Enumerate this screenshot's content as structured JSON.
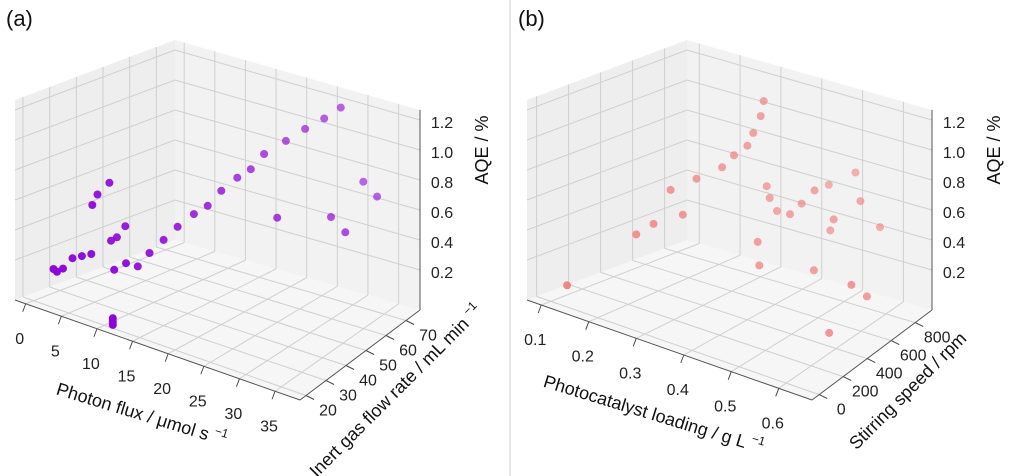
{
  "chart_data": [
    {
      "panel": "(a)",
      "type": "scatter3d",
      "marker_color": "#8B00D8",
      "xlabel": "Photon flux / μmol s",
      "xlabel_sup": "−1",
      "ylabel": "Inert gas flow rate / mL min",
      "ylabel_sup": "−1",
      "zlabel": "AQE / %",
      "xticks": [
        "0",
        "5",
        "10",
        "15",
        "20",
        "25",
        "30",
        "35"
      ],
      "yticks": [
        "20",
        "30",
        "40",
        "50",
        "60",
        "70"
      ],
      "zticks": [
        "0.2",
        "0.4",
        "0.6",
        "0.8",
        "1.0",
        "1.2"
      ],
      "points": [
        {
          "x": 2,
          "y": 21,
          "z": 0.22
        },
        {
          "x": 2.5,
          "y": 21,
          "z": 0.21
        },
        {
          "x": 3,
          "y": 22,
          "z": 0.23
        },
        {
          "x": 4,
          "y": 23,
          "z": 0.3
        },
        {
          "x": 5,
          "y": 24,
          "z": 0.32
        },
        {
          "x": 6,
          "y": 25,
          "z": 0.34
        },
        {
          "x": 5,
          "y": 28,
          "z": 0.6
        },
        {
          "x": 5,
          "y": 30,
          "z": 0.65
        },
        {
          "x": 6,
          "y": 32,
          "z": 0.72
        },
        {
          "x": 7,
          "y": 30,
          "z": 0.4
        },
        {
          "x": 7.5,
          "y": 31,
          "z": 0.42
        },
        {
          "x": 8,
          "y": 33,
          "z": 0.48
        },
        {
          "x": 9,
          "y": 26,
          "z": 0.28
        },
        {
          "x": 10,
          "y": 28,
          "z": 0.32
        },
        {
          "x": 11,
          "y": 30,
          "z": 0.3
        },
        {
          "x": 11,
          "y": 20,
          "z": 0.02
        },
        {
          "x": 11,
          "y": 20,
          "z": 0.04
        },
        {
          "x": 11,
          "y": 20,
          "z": 0.06
        },
        {
          "x": 12,
          "y": 32,
          "z": 0.38
        },
        {
          "x": 13,
          "y": 35,
          "z": 0.45
        },
        {
          "x": 14,
          "y": 38,
          "z": 0.52
        },
        {
          "x": 15,
          "y": 42,
          "z": 0.58
        },
        {
          "x": 16,
          "y": 45,
          "z": 0.62
        },
        {
          "x": 17,
          "y": 48,
          "z": 0.7
        },
        {
          "x": 18,
          "y": 52,
          "z": 0.76
        },
        {
          "x": 19,
          "y": 55,
          "z": 0.8
        },
        {
          "x": 20,
          "y": 58,
          "z": 0.88
        },
        {
          "x": 22,
          "y": 62,
          "z": 0.95
        },
        {
          "x": 24,
          "y": 65,
          "z": 1.02
        },
        {
          "x": 26,
          "y": 68,
          "z": 1.08
        },
        {
          "x": 28,
          "y": 70,
          "z": 1.15
        },
        {
          "x": 31,
          "y": 72,
          "z": 0.72
        },
        {
          "x": 34,
          "y": 70,
          "z": 0.68
        },
        {
          "x": 30,
          "y": 60,
          "z": 0.6
        },
        {
          "x": 33,
          "y": 58,
          "z": 0.56
        },
        {
          "x": 25,
          "y": 50,
          "z": 0.62
        }
      ]
    },
    {
      "panel": "(b)",
      "type": "scatter3d",
      "marker_color": "#F08080",
      "xlabel": "Photocatalyst loading / g L",
      "xlabel_sup": "−1",
      "ylabel": "Stirring speed / rpm",
      "ylabel_sup": "",
      "zlabel": "AQE / %",
      "xticks": [
        "0.1",
        "0.2",
        "0.3",
        "0.4",
        "0.5",
        "0.6"
      ],
      "yticks": [
        "0",
        "200",
        "400",
        "600",
        "800"
      ],
      "zticks": [
        "0.2",
        "0.4",
        "0.6",
        "0.8",
        "1.0",
        "1.2"
      ],
      "points": [
        {
          "x": 0.12,
          "y": 50,
          "z": 0.1
        },
        {
          "x": 0.18,
          "y": 300,
          "z": 0.36
        },
        {
          "x": 0.2,
          "y": 350,
          "z": 0.42
        },
        {
          "x": 0.22,
          "y": 400,
          "z": 0.62
        },
        {
          "x": 0.24,
          "y": 420,
          "z": 0.48
        },
        {
          "x": 0.26,
          "y": 450,
          "z": 0.7
        },
        {
          "x": 0.3,
          "y": 500,
          "z": 0.78
        },
        {
          "x": 0.32,
          "y": 520,
          "z": 0.86
        },
        {
          "x": 0.34,
          "y": 550,
          "z": 0.92
        },
        {
          "x": 0.35,
          "y": 560,
          "z": 1.0
        },
        {
          "x": 0.36,
          "y": 580,
          "z": 1.1
        },
        {
          "x": 0.36,
          "y": 600,
          "z": 1.18
        },
        {
          "x": 0.36,
          "y": 620,
          "z": 0.66
        },
        {
          "x": 0.36,
          "y": 640,
          "z": 0.58
        },
        {
          "x": 0.37,
          "y": 660,
          "z": 0.5
        },
        {
          "x": 0.38,
          "y": 500,
          "z": 0.4
        },
        {
          "x": 0.4,
          "y": 450,
          "z": 0.3
        },
        {
          "x": 0.42,
          "y": 600,
          "z": 0.55
        },
        {
          "x": 0.44,
          "y": 620,
          "z": 0.62
        },
        {
          "x": 0.46,
          "y": 650,
          "z": 0.7
        },
        {
          "x": 0.48,
          "y": 700,
          "z": 0.45
        },
        {
          "x": 0.5,
          "y": 520,
          "z": 0.32
        },
        {
          "x": 0.52,
          "y": 600,
          "z": 0.6
        },
        {
          "x": 0.55,
          "y": 700,
          "z": 0.68
        },
        {
          "x": 0.58,
          "y": 750,
          "z": 0.52
        },
        {
          "x": 0.6,
          "y": 300,
          "z": 0.15
        },
        {
          "x": 0.62,
          "y": 400,
          "z": 0.4
        },
        {
          "x": 0.64,
          "y": 450,
          "z": 0.32
        },
        {
          "x": 0.5,
          "y": 820,
          "z": 0.75
        },
        {
          "x": 0.45,
          "y": 780,
          "z": 0.66
        }
      ]
    }
  ]
}
